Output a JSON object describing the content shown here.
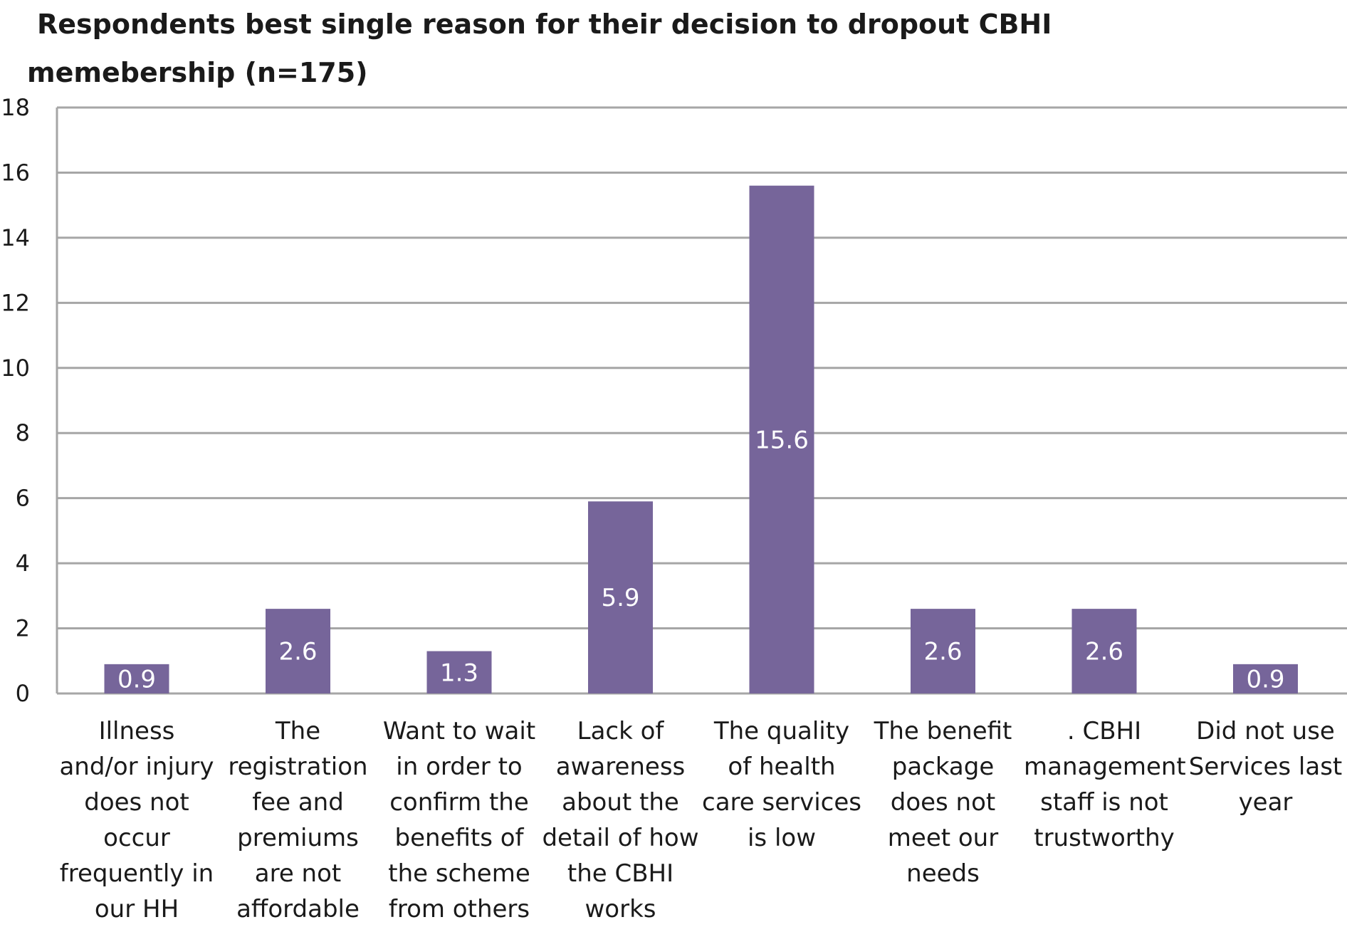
{
  "chart_data": {
    "type": "bar",
    "title": "Respondents  best single reason for their decision to dropout CBHI memebership (n=175)",
    "xlabel": "",
    "ylabel": "",
    "ylim": [
      0,
      18
    ],
    "yticks": [
      0,
      2,
      4,
      6,
      8,
      10,
      12,
      14,
      16,
      18
    ],
    "grid": true,
    "legend": "none",
    "bar_color": "#76659a",
    "categories": [
      "Illness and/or injury does not occur frequently in our HH",
      "The registration fee and premiums are not affordable",
      "Want to wait in order to confirm the benefits of the scheme from others",
      "Lack of awareness about the detail of how the CBHI works",
      "The quality of health care services is low",
      "The benefit package does not meet our needs",
      ". CBHI management staff is not trustworthy",
      "Did not use Services last year"
    ],
    "values": [
      0.9,
      2.6,
      1.3,
      5.9,
      15.6,
      2.6,
      2.6,
      0.9
    ],
    "data_labels": [
      "0.9",
      "2.6",
      "1.3",
      "5.9",
      "15.6",
      "2.6",
      "2.6",
      "0.9"
    ]
  }
}
